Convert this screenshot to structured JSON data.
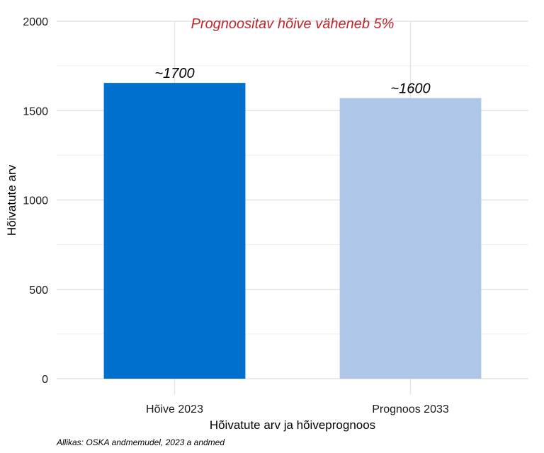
{
  "chart_data": {
    "type": "bar",
    "categories": [
      "Hõive 2023",
      "Prognoos 2033"
    ],
    "values": [
      1655,
      1570
    ],
    "data_labels": [
      "~1700",
      "~1600"
    ],
    "colors": [
      "#0070cf",
      "#aec7e8"
    ],
    "annotation": "Prognoositav hõive väheneb 5%",
    "annotation_color": "#c0272d",
    "xlabel": "Hõivatute arv ja hõiveprognoos",
    "ylabel": "Hõivatute arv",
    "ylim": [
      0,
      2000
    ],
    "yticks": [
      0,
      500,
      1000,
      1500,
      2000
    ],
    "grid": true,
    "caption": "Allikas: OSKA andmemudel, 2023 a andmed"
  }
}
